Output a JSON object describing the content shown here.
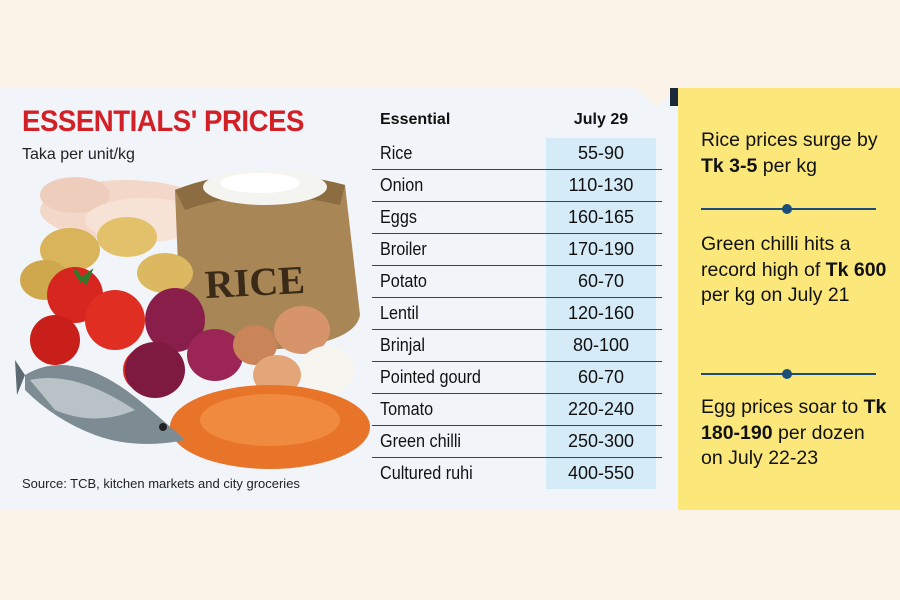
{
  "title": "ESSENTIALS' PRICES",
  "subtitle": "Taka per unit/kg",
  "source": "Source: TCB, kitchen markets and city groceries",
  "illustration": {
    "sack_label": "RICE"
  },
  "colors": {
    "title": "#d31f26",
    "price_cell": "#d6ebf8",
    "sidebar": "#fbe77a",
    "rule": "#1a4d7a"
  },
  "chart_data": {
    "type": "table",
    "columns": [
      "Essential",
      "July 29"
    ],
    "rows": [
      {
        "item": "Rice",
        "price": "55-90"
      },
      {
        "item": "Onion",
        "price": "110-130"
      },
      {
        "item": "Eggs",
        "price": "160-165"
      },
      {
        "item": "Broiler",
        "price": "170-190"
      },
      {
        "item": "Potato",
        "price": "60-70"
      },
      {
        "item": "Lentil",
        "price": "120-160"
      },
      {
        "item": "Brinjal",
        "price": "80-100"
      },
      {
        "item": "Pointed gourd",
        "price": "60-70"
      },
      {
        "item": "Tomato",
        "price": "220-240"
      },
      {
        "item": "Green chilli",
        "price": "250-300"
      },
      {
        "item": "Cultured ruhi",
        "price": "400-550"
      }
    ]
  },
  "notes": [
    {
      "pre": "Rice prices surge by",
      "bold": "Tk 3-5",
      "post": "per kg"
    },
    {
      "pre": "Green chilli hits a record high of",
      "bold": "Tk 600",
      "post": "per kg on July 21"
    },
    {
      "pre": "Egg prices soar to",
      "bold": "Tk 180-190",
      "post": "per dozen on July 22-23"
    }
  ]
}
